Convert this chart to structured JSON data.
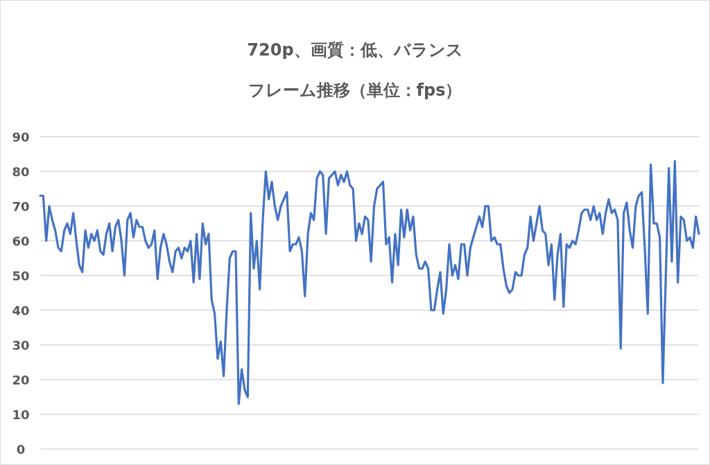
{
  "chart_data": {
    "type": "line",
    "title": "720p、画質：低、バランス",
    "subtitle": "フレーム推移（単位：fps）",
    "categories": [
      null,
      null,
      null,
      null,
      null,
      null,
      null,
      null,
      null,
      null,
      null,
      null,
      null,
      null,
      null,
      null,
      null,
      null,
      null,
      null,
      null,
      null,
      null,
      null,
      null,
      null,
      null,
      null,
      null,
      null,
      null,
      null,
      null,
      null,
      null,
      null,
      null,
      null,
      null,
      null,
      null,
      null,
      null,
      null,
      null,
      null,
      null,
      null,
      null,
      null,
      null,
      null,
      null,
      null,
      null,
      null,
      null,
      null,
      null,
      null,
      null,
      null,
      null,
      null,
      null,
      null,
      null,
      null,
      null,
      null,
      null,
      null,
      null,
      null,
      null,
      null,
      null,
      null,
      null,
      null,
      null,
      null,
      null,
      null,
      null,
      null,
      null,
      null,
      null,
      null,
      null,
      null,
      null,
      null,
      null,
      null,
      null,
      null,
      null,
      null,
      null,
      null,
      null,
      null,
      null,
      null,
      null,
      null,
      null,
      null,
      null,
      null,
      null,
      null,
      null,
      null,
      null,
      null,
      null,
      null,
      null,
      null,
      null,
      null,
      null,
      null,
      null,
      null,
      null,
      null,
      null,
      null,
      null,
      null,
      null,
      null,
      null,
      null,
      null,
      null,
      null,
      null,
      null,
      null,
      null,
      null,
      null,
      null,
      null,
      null,
      null,
      null,
      null,
      null,
      null,
      null,
      null,
      null,
      null,
      null,
      null,
      null,
      null,
      null,
      null,
      null,
      null,
      null,
      null,
      null,
      null,
      null,
      null,
      null,
      null,
      null,
      null,
      null,
      null,
      null,
      null,
      null,
      null,
      null,
      null,
      null,
      null,
      null,
      null,
      null,
      null,
      null,
      null,
      null,
      null,
      null,
      null,
      null,
      null,
      null,
      null,
      null,
      null,
      null,
      null,
      null,
      null,
      null,
      null,
      null,
      null,
      null,
      null,
      null,
      null,
      null,
      null,
      null,
      null,
      null
    ],
    "values": [
      73,
      73,
      60,
      70,
      66,
      63,
      58,
      57,
      63,
      65,
      62,
      68,
      60,
      53,
      51,
      63,
      58,
      62,
      60,
      63,
      57,
      56,
      62,
      65,
      57,
      64,
      66,
      60,
      50,
      66,
      68,
      61,
      66,
      64,
      64,
      60,
      58,
      59,
      63,
      49,
      58,
      62,
      59,
      54,
      51,
      57,
      58,
      55,
      58,
      57,
      60,
      48,
      62,
      49,
      65,
      59,
      62,
      43,
      39,
      26,
      31,
      21,
      40,
      55,
      57,
      57,
      13,
      23,
      17,
      15,
      68,
      52,
      60,
      46,
      66,
      80,
      72,
      77,
      70,
      66,
      70,
      72,
      74,
      57,
      59,
      59,
      61,
      57,
      44,
      62,
      68,
      66,
      78,
      80,
      79,
      62,
      78,
      79,
      80,
      76,
      79,
      77,
      80,
      76,
      75,
      60,
      65,
      62,
      67,
      66,
      54,
      70,
      75,
      76,
      77,
      59,
      61,
      48,
      62,
      53,
      69,
      61,
      69,
      63,
      67,
      56,
      52,
      52,
      54,
      52,
      40,
      40,
      46,
      51,
      39,
      46,
      59,
      50,
      53,
      49,
      59,
      59,
      50,
      58,
      61,
      64,
      67,
      64,
      70,
      70,
      60,
      61,
      59,
      59,
      52,
      47,
      45,
      46,
      51,
      50,
      50,
      56,
      58,
      67,
      60,
      65,
      70,
      63,
      62,
      53,
      59,
      43,
      56,
      62,
      41,
      59,
      58,
      60,
      59,
      63,
      68,
      69,
      69,
      66,
      70,
      66,
      68,
      62,
      68,
      72,
      68,
      69,
      66,
      29,
      68,
      71,
      63,
      58,
      70,
      73,
      74,
      58,
      39,
      82,
      65,
      65,
      61,
      19,
      50,
      81,
      54,
      83,
      48,
      67,
      66,
      60,
      61,
      58,
      67,
      62
    ],
    "color": "#4472c4",
    "ylim": [
      0,
      90
    ],
    "yticks": [
      0,
      10,
      20,
      30,
      40,
      50,
      60,
      70,
      80,
      90
    ],
    "grid": "y"
  }
}
